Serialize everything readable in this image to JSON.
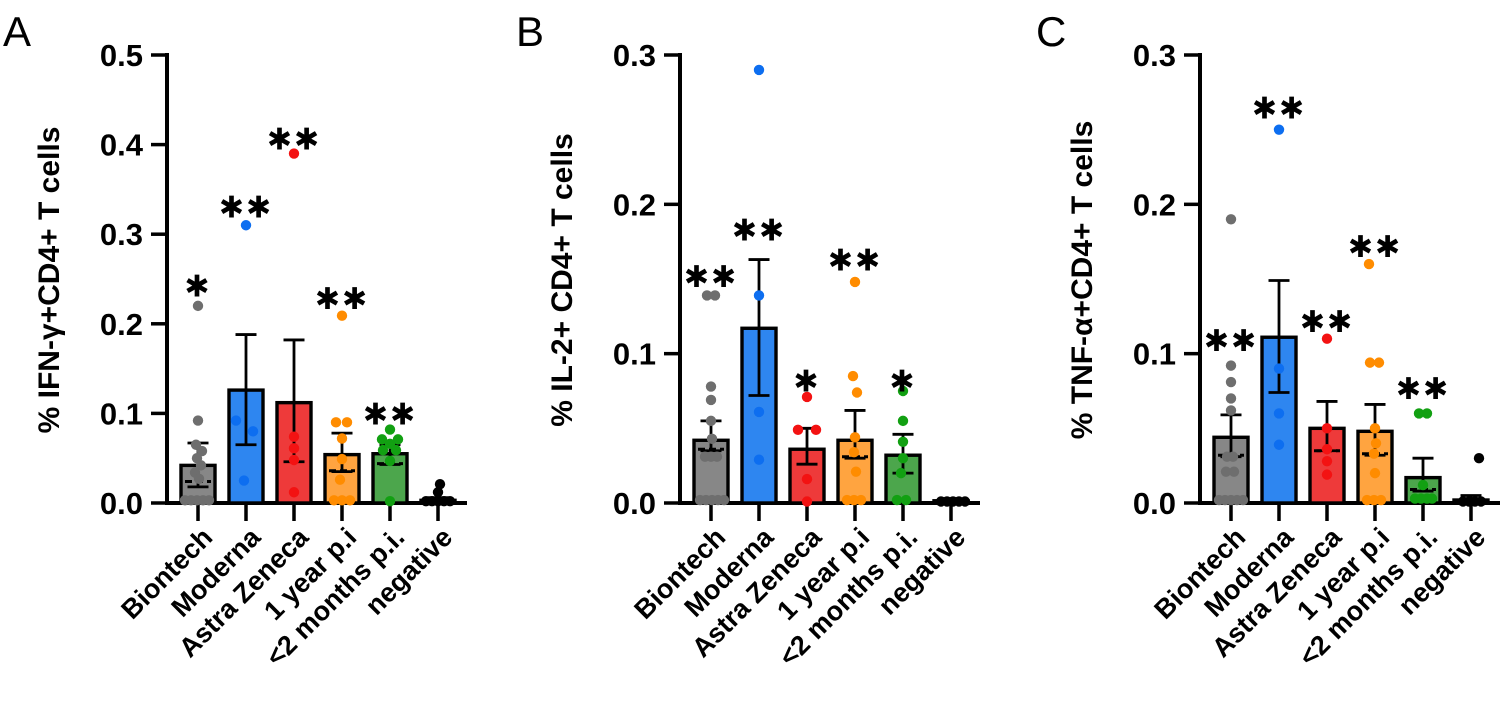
{
  "figure": {
    "background": "#ffffff",
    "group_styles": [
      {
        "name": "Biontech",
        "bar_fill": "#878787",
        "dot_color": "#6E6E6E"
      },
      {
        "name": "Moderna",
        "bar_fill": "#2E86F0",
        "dot_color": "#0D6EF0"
      },
      {
        "name": "Astra Zeneca",
        "bar_fill": "#EE3A3A",
        "dot_color": "#F31212"
      },
      {
        "name": "1 year p.i",
        "bar_fill": "#FFA440",
        "dot_color": "#FF8C00"
      },
      {
        "name": "<2 months p.i.",
        "bar_fill": "#4CA64C",
        "dot_color": "#12A012"
      },
      {
        "name": "negative",
        "bar_fill": "#000000",
        "dot_color": "#000000"
      }
    ]
  },
  "chart_data": [
    {
      "type": "bar",
      "panel": "A",
      "title": "",
      "ylabel": "% IFN-γ+CD4+ T cells",
      "xlabel": "",
      "ylim": [
        0,
        0.5
      ],
      "yticks": [
        "0.0",
        "0.1",
        "0.2",
        "0.3",
        "0.4",
        "0.5"
      ],
      "grid": false,
      "legend": "none",
      "categories": [
        "Biontech",
        "Moderna",
        "Astra Zeneca",
        "1 year p.i",
        "<2 months p.i.",
        "negative"
      ],
      "series": [
        {
          "name": "Biontech",
          "bar": 0.042,
          "err_top": 0.067,
          "err_bot": 0.018,
          "mean_dash": 0.024,
          "sig": "*",
          "sig_y": 0.243,
          "points": [
            [
              0,
              0.22
            ],
            [
              0,
              0.092
            ],
            [
              -2,
              0.065
            ],
            [
              4,
              0.058
            ],
            [
              -1,
              0.05
            ],
            [
              3,
              0.042
            ],
            [
              -3,
              0.034
            ],
            [
              1,
              0.027
            ],
            [
              -13,
              0.003
            ],
            [
              -7,
              0.003
            ],
            [
              -1,
              0.003
            ],
            [
              5,
              0.003
            ],
            [
              11,
              0.003
            ]
          ]
        },
        {
          "name": "Moderna",
          "bar": 0.126,
          "err_top": 0.188,
          "err_bot": 0.065,
          "mean_dash": null,
          "sig": "**",
          "sig_y": 0.331,
          "points": [
            [
              0,
              0.31
            ],
            [
              -10,
              0.092
            ],
            [
              7,
              0.08
            ],
            [
              -2,
              0.025
            ]
          ]
        },
        {
          "name": "Astra Zeneca",
          "bar": 0.112,
          "err_top": 0.182,
          "err_bot": 0.046,
          "mean_dash": null,
          "sig": "**",
          "sig_y": 0.407,
          "points": [
            [
              0,
              0.39
            ],
            [
              0,
              0.074
            ],
            [
              0,
              0.061
            ],
            [
              0,
              0.048
            ],
            [
              0,
              0.012
            ]
          ]
        },
        {
          "name": "1 year p.i",
          "bar": 0.054,
          "err_top": 0.078,
          "err_bot": 0.035,
          "mean_dash": 0.036,
          "sig": "**",
          "sig_y": 0.229,
          "points": [
            [
              0,
              0.209
            ],
            [
              -6,
              0.09
            ],
            [
              5,
              0.09
            ],
            [
              0,
              0.072
            ],
            [
              0,
              0.049
            ],
            [
              -2,
              0.026
            ],
            [
              -8,
              0.003
            ],
            [
              0,
              0.003
            ],
            [
              8,
              0.003
            ]
          ]
        },
        {
          "name": "<2 months p.i.",
          "bar": 0.055,
          "err_top": 0.065,
          "err_bot": 0.043,
          "mean_dash": 0.044,
          "sig": "**",
          "sig_y": 0.1,
          "points": [
            [
              0,
              0.082
            ],
            [
              -8,
              0.071
            ],
            [
              8,
              0.071
            ],
            [
              0,
              0.066
            ],
            [
              -7,
              0.059
            ],
            [
              6,
              0.059
            ],
            [
              0,
              0.047
            ],
            [
              0,
              0.002
            ]
          ]
        },
        {
          "name": "negative",
          "bar": 0.003,
          "err_top": 0.006,
          "err_bot": null,
          "mean_dash": null,
          "sig": null,
          "sig_y": null,
          "points": [
            [
              2,
              0.021
            ],
            [
              0,
              0.012
            ],
            [
              -12,
              0.002
            ],
            [
              -6,
              0.002
            ],
            [
              0,
              0.002
            ],
            [
              6,
              0.002
            ],
            [
              12,
              0.002
            ]
          ]
        }
      ]
    },
    {
      "type": "bar",
      "panel": "B",
      "title": "",
      "ylabel": "% IL-2+ CD4+ T cells",
      "xlabel": "",
      "ylim": [
        0,
        0.3
      ],
      "yticks": [
        "0.0",
        "0.1",
        "0.2",
        "0.3"
      ],
      "grid": false,
      "legend": "none",
      "categories": [
        "Biontech",
        "Moderna",
        "Astra Zeneca",
        "1 year p.i",
        "<2 months p.i.",
        "negative"
      ],
      "series": [
        {
          "name": "Biontech",
          "bar": 0.042,
          "err_top": 0.055,
          "err_bot": 0.035,
          "mean_dash": 0.036,
          "sig": "**",
          "sig_y": 0.152,
          "points": [
            [
              -4,
              0.139
            ],
            [
              4,
              0.139
            ],
            [
              0,
              0.078
            ],
            [
              0,
              0.069
            ],
            [
              0,
              0.055
            ],
            [
              1,
              0.043
            ],
            [
              -6,
              0.031
            ],
            [
              0,
              0.031
            ],
            [
              6,
              0.031
            ],
            [
              -11,
              0.002
            ],
            [
              -5,
              0.002
            ],
            [
              1,
              0.002
            ],
            [
              7,
              0.002
            ],
            [
              13,
              0.002
            ]
          ]
        },
        {
          "name": "Moderna",
          "bar": 0.117,
          "err_top": 0.163,
          "err_bot": 0.072,
          "mean_dash": null,
          "sig": "**",
          "sig_y": 0.183,
          "points": [
            [
              0,
              0.29
            ],
            [
              0,
              0.139
            ],
            [
              0,
              0.061
            ],
            [
              0,
              0.029
            ]
          ]
        },
        {
          "name": "Astra Zeneca",
          "bar": 0.036,
          "err_top": 0.05,
          "err_bot": 0.026,
          "mean_dash": null,
          "sig": "*",
          "sig_y": 0.082,
          "points": [
            [
              0,
              0.071
            ],
            [
              -9,
              0.049
            ],
            [
              9,
              0.049
            ],
            [
              0,
              0.016
            ],
            [
              0,
              0.001
            ]
          ]
        },
        {
          "name": "1 year p.i",
          "bar": 0.042,
          "err_top": 0.062,
          "err_bot": 0.03,
          "mean_dash": 0.031,
          "sig": "**",
          "sig_y": 0.163,
          "points": [
            [
              0,
              0.148
            ],
            [
              -2,
              0.085
            ],
            [
              2,
              0.074
            ],
            [
              0,
              0.044
            ],
            [
              -1,
              0.034
            ],
            [
              1,
              0.021
            ],
            [
              -8,
              0.002
            ],
            [
              -1,
              0.002
            ],
            [
              6,
              0.002
            ]
          ]
        },
        {
          "name": "<2 months p.i.",
          "bar": 0.032,
          "err_top": 0.046,
          "err_bot": 0.02,
          "mean_dash": null,
          "sig": "*",
          "sig_y": 0.082,
          "points": [
            [
              0,
              0.075
            ],
            [
              0,
              0.055
            ],
            [
              0,
              0.041
            ],
            [
              0,
              0.03
            ],
            [
              -2,
              0.02
            ],
            [
              -6,
              0.002
            ],
            [
              3,
              0.002
            ]
          ]
        },
        {
          "name": "negative",
          "bar": 0.0015,
          "err_top": 0.003,
          "err_bot": null,
          "mean_dash": null,
          "sig": null,
          "sig_y": null,
          "points": [
            [
              -10,
              0.001
            ],
            [
              -4,
              0.001
            ],
            [
              2,
              0.001
            ],
            [
              8,
              0.001
            ],
            [
              14,
              0.001
            ]
          ]
        }
      ]
    },
    {
      "type": "bar",
      "panel": "C",
      "title": "",
      "ylabel": "% TNF-α+CD4+ T cells",
      "xlabel": "",
      "ylim": [
        0,
        0.3
      ],
      "yticks": [
        "0.0",
        "0.1",
        "0.2",
        "0.3"
      ],
      "grid": false,
      "legend": "none",
      "categories": [
        "Biontech",
        "Moderna",
        "Astra Zeneca",
        "1 year p.i",
        "<2 months p.i.",
        "negative"
      ],
      "series": [
        {
          "name": "Biontech",
          "bar": 0.044,
          "err_top": 0.059,
          "err_bot": 0.031,
          "mean_dash": 0.032,
          "sig": "**",
          "sig_y": 0.109,
          "points": [
            [
              0,
              0.19
            ],
            [
              0,
              0.092
            ],
            [
              0,
              0.081
            ],
            [
              0,
              0.07
            ],
            [
              0,
              0.062
            ],
            [
              -4,
              0.031
            ],
            [
              2,
              0.031
            ],
            [
              -5,
              0.021
            ],
            [
              3,
              0.021
            ],
            [
              -12,
              0.002
            ],
            [
              -6,
              0.002
            ],
            [
              0,
              0.002
            ],
            [
              6,
              0.002
            ],
            [
              12,
              0.002
            ]
          ]
        },
        {
          "name": "Moderna",
          "bar": 0.111,
          "err_top": 0.149,
          "err_bot": 0.074,
          "mean_dash": null,
          "sig": "**",
          "sig_y": 0.265,
          "points": [
            [
              0,
              0.25
            ],
            [
              0,
              0.09
            ],
            [
              0,
              0.06
            ],
            [
              0,
              0.039
            ]
          ]
        },
        {
          "name": "Astra Zeneca",
          "bar": 0.05,
          "err_top": 0.068,
          "err_bot": 0.035,
          "mean_dash": 0.035,
          "sig": "**",
          "sig_y": 0.122,
          "points": [
            [
              0,
              0.11
            ],
            [
              0,
              0.05
            ],
            [
              0,
              0.036
            ],
            [
              0,
              0.028
            ],
            [
              0,
              0.019
            ]
          ]
        },
        {
          "name": "1 year p.i",
          "bar": 0.048,
          "err_top": 0.066,
          "err_bot": 0.032,
          "mean_dash": 0.033,
          "sig": "**",
          "sig_y": 0.172,
          "points": [
            [
              -6,
              0.16
            ],
            [
              -5,
              0.094
            ],
            [
              4,
              0.094
            ],
            [
              0,
              0.05
            ],
            [
              1,
              0.04
            ],
            [
              -1,
              0.033
            ],
            [
              0,
              0.02
            ],
            [
              -8,
              0.002
            ],
            [
              -1,
              0.002
            ],
            [
              6,
              0.002
            ]
          ]
        },
        {
          "name": "<2 months p.i.",
          "bar": 0.017,
          "err_top": 0.03,
          "err_bot": 0.008,
          "mean_dash": 0.009,
          "sig": "**",
          "sig_y": 0.077,
          "points": [
            [
              -4,
              0.06
            ],
            [
              4,
              0.06
            ],
            [
              0,
              0.012
            ],
            [
              -8,
              0.003
            ],
            [
              -2,
              0.003
            ],
            [
              4,
              0.003
            ],
            [
              9,
              0.003
            ]
          ]
        },
        {
          "name": "negative",
          "bar": 0.002,
          "err_top": 0.005,
          "err_bot": null,
          "mean_dash": null,
          "sig": null,
          "sig_y": null,
          "points": [
            [
              8,
              0.03
            ],
            [
              -8,
              0.001
            ],
            [
              -2,
              0.001
            ],
            [
              4,
              0.001
            ],
            [
              10,
              0.001
            ]
          ]
        }
      ]
    }
  ]
}
